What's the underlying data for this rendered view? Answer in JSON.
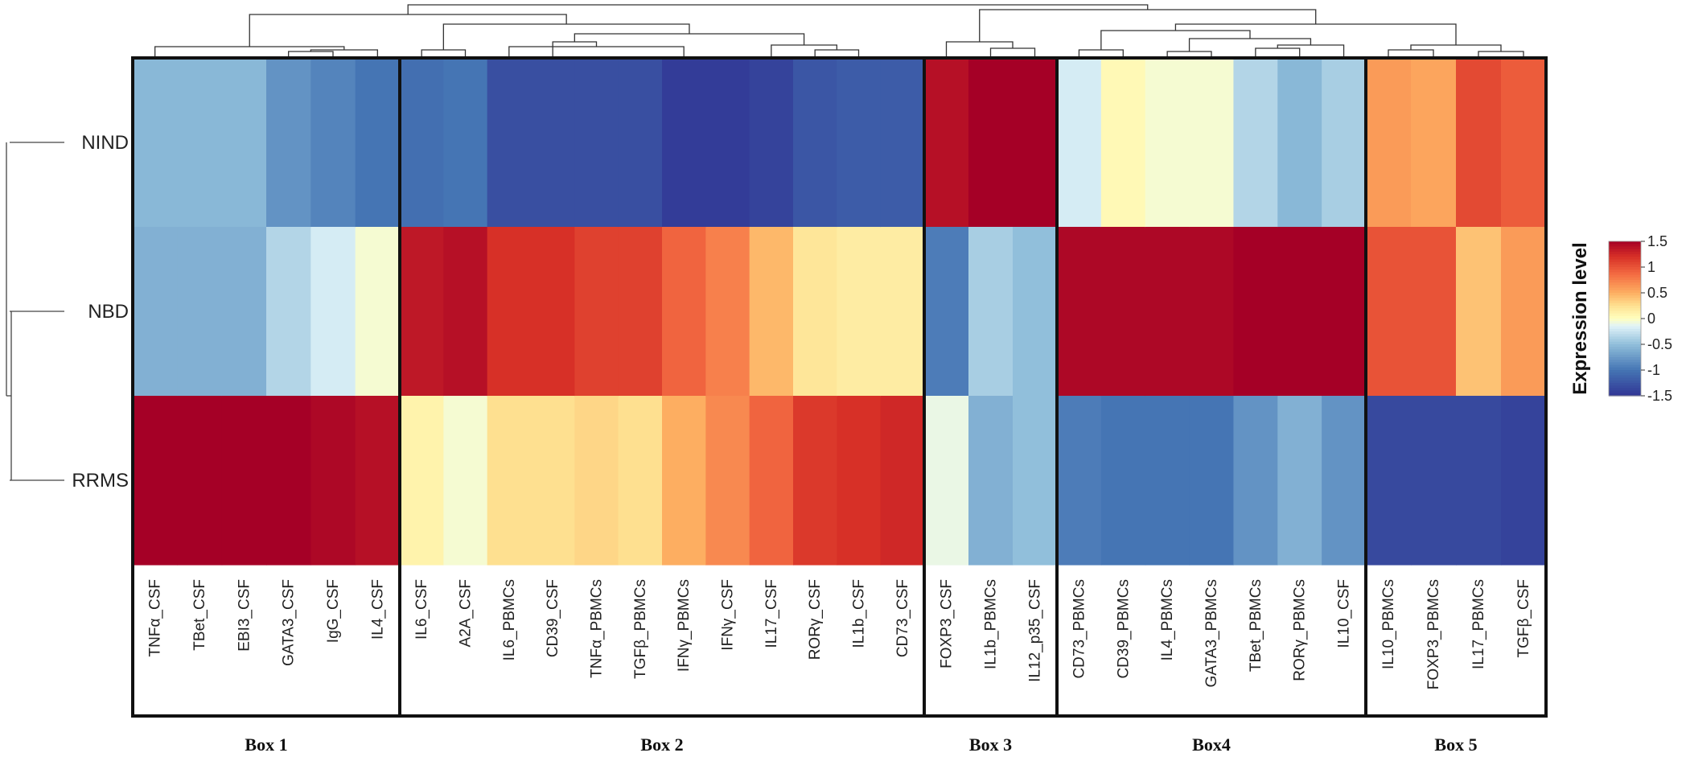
{
  "chart_data": {
    "type": "heatmap",
    "legend_title": "Expression level",
    "color_range": [
      -1.5,
      1.5
    ],
    "legend_ticks": [
      "1.5",
      "1",
      "0.5",
      "0",
      "-0.5",
      "-1",
      "-1.5"
    ],
    "legend_tick_values": [
      1.5,
      1,
      0.5,
      0,
      -0.5,
      -1,
      -1.5
    ],
    "rows": [
      "NIND",
      "NBD",
      "RRMS"
    ],
    "boxes": [
      {
        "label": "Box 1",
        "columns": [
          "TNFα_CSF",
          "TBet_CSF",
          "EBI3_CSF",
          "GATA3_CSF",
          "IgG_CSF",
          "IL4_CSF"
        ],
        "values": [
          [
            -0.55,
            -0.55,
            -0.55,
            -0.8,
            -0.9,
            -1.0
          ],
          [
            -0.6,
            -0.6,
            -0.6,
            -0.35,
            -0.2,
            -0.05
          ],
          [
            1.55,
            1.55,
            1.55,
            1.5,
            1.45,
            1.4
          ]
        ]
      },
      {
        "label": "Box 2",
        "columns": [
          "IL6_CSF",
          "A2A_CSF",
          "IL6_PBMCs",
          "CD39_CSF",
          "TNFα_PBMCs",
          "TGFβ_PBMCs",
          "IFNγ_PBMCs",
          "IFNγ_CSF",
          "IL17_CSF",
          "RORγ_CSF",
          "IL1b_CSF",
          "CD73_CSF"
        ],
        "values": [
          [
            -1.05,
            -1.0,
            -1.3,
            -1.3,
            -1.3,
            -1.3,
            -1.45,
            -1.45,
            -1.4,
            -1.25,
            -1.2,
            -1.2
          ],
          [
            1.35,
            1.4,
            1.2,
            1.2,
            1.1,
            1.1,
            0.9,
            0.75,
            0.45,
            0.2,
            0.15,
            0.15
          ],
          [
            0.1,
            -0.05,
            0.25,
            0.25,
            0.3,
            0.25,
            0.5,
            0.7,
            0.9,
            1.15,
            1.2,
            1.25
          ]
        ]
      },
      {
        "label": "Box 3",
        "columns": [
          "FOXP3_CSF",
          "IL1b_PBMCs",
          "IL12_p35_CSF"
        ],
        "values": [
          [
            1.4,
            1.55,
            1.55
          ],
          [
            -0.95,
            -0.4,
            -0.5
          ],
          [
            -0.1,
            -0.6,
            -0.5
          ]
        ]
      },
      {
        "label": "Box4",
        "columns": [
          "CD73_PBMCs",
          "CD39_PBMCs",
          "IL4_PBMCs",
          "GATA3_PBMCs",
          "TBet_PBMCs",
          "RORγ_PBMCs",
          "IL10_CSF"
        ],
        "values": [
          [
            -0.2,
            0.05,
            -0.05,
            -0.05,
            -0.35,
            -0.55,
            -0.4
          ],
          [
            1.45,
            1.45,
            1.45,
            1.45,
            1.55,
            1.55,
            1.5
          ],
          [
            -0.95,
            -1.0,
            -1.0,
            -1.0,
            -0.8,
            -0.6,
            -0.8
          ]
        ]
      },
      {
        "label": "Box 5",
        "columns": [
          "IL10_PBMCs",
          "FOXP3_PBMCs",
          "IL17_PBMCs",
          "TGFβ_CSF"
        ],
        "values": [
          [
            0.6,
            0.55,
            1.05,
            0.95
          ],
          [
            1.0,
            1.0,
            0.4,
            0.6
          ],
          [
            -1.35,
            -1.35,
            -1.35,
            -1.4
          ]
        ]
      }
    ]
  }
}
